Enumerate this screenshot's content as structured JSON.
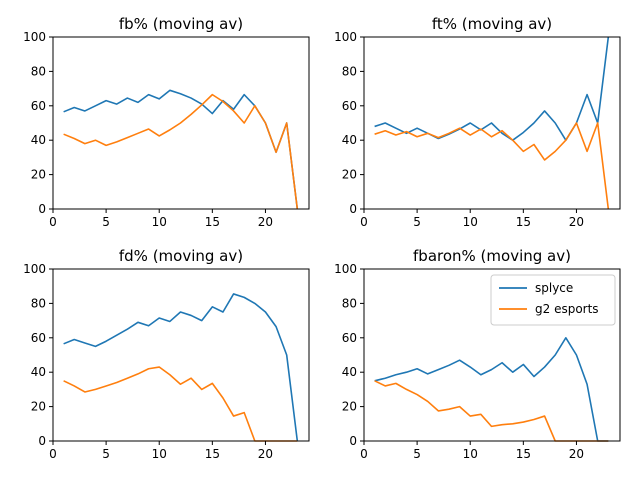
{
  "colors": {
    "splyce": "#1f77b4",
    "g2": "#ff7f0e"
  },
  "chart_data": [
    {
      "type": "line",
      "title": "fb% (moving av)",
      "xlabel": "",
      "ylabel": "",
      "xlim": [
        0,
        24.1
      ],
      "ylim": [
        0,
        100
      ],
      "xticks": [
        0,
        5,
        10,
        15,
        20
      ],
      "yticks": [
        0,
        20,
        40,
        60,
        80,
        100
      ],
      "x": [
        1,
        2,
        3,
        4,
        5,
        6,
        7,
        8,
        9,
        10,
        11,
        12,
        13,
        14,
        15,
        16,
        17,
        18,
        19,
        20,
        21,
        22,
        23
      ],
      "series": [
        {
          "name": "splyce",
          "values": [
            56.5,
            59,
            57,
            60,
            63,
            61,
            64.5,
            62,
            66.5,
            64,
            69,
            67,
            64.5,
            61,
            55.5,
            63,
            58,
            66.5,
            60,
            50,
            33,
            50,
            0
          ]
        },
        {
          "name": "g2 esports",
          "values": [
            43.5,
            41,
            38,
            40,
            37,
            39,
            41.5,
            44,
            46.5,
            42.5,
            46,
            50,
            55,
            60.5,
            66.5,
            62.5,
            57,
            50,
            60,
            50,
            33,
            50,
            0
          ]
        }
      ]
    },
    {
      "type": "line",
      "title": "ft% (moving av)",
      "xlabel": "",
      "ylabel": "",
      "xlim": [
        0,
        24.1
      ],
      "ylim": [
        0,
        100
      ],
      "xticks": [
        0,
        5,
        10,
        15,
        20
      ],
      "yticks": [
        0,
        20,
        40,
        60,
        80,
        100
      ],
      "x": [
        1,
        2,
        3,
        4,
        5,
        6,
        7,
        8,
        9,
        10,
        11,
        12,
        13,
        14,
        15,
        16,
        17,
        18,
        19,
        20,
        21,
        22,
        23
      ],
      "series": [
        {
          "name": "splyce",
          "values": [
            48,
            50,
            47,
            44,
            47,
            44,
            41,
            43.5,
            46.5,
            50,
            46,
            50,
            44,
            40,
            44.5,
            50,
            57,
            50,
            40,
            50,
            66.5,
            50,
            100
          ]
        },
        {
          "name": "g2 esports",
          "values": [
            43.5,
            45.5,
            43,
            45,
            42,
            44,
            41.5,
            44,
            47,
            43,
            46.5,
            42,
            45.5,
            40,
            33.5,
            37.5,
            28.5,
            33.5,
            40,
            50,
            33.5,
            50,
            0
          ]
        }
      ]
    },
    {
      "type": "line",
      "title": "fd% (moving av)",
      "xlabel": "",
      "ylabel": "",
      "xlim": [
        0,
        24.1
      ],
      "ylim": [
        0,
        100
      ],
      "xticks": [
        0,
        5,
        10,
        15,
        20
      ],
      "yticks": [
        0,
        20,
        40,
        60,
        80,
        100
      ],
      "x": [
        1,
        2,
        3,
        4,
        5,
        6,
        7,
        8,
        9,
        10,
        11,
        12,
        13,
        14,
        15,
        16,
        17,
        18,
        19,
        20,
        21,
        22,
        23
      ],
      "series": [
        {
          "name": "splyce",
          "values": [
            56.5,
            59,
            57,
            55,
            58,
            61.5,
            65,
            69,
            67,
            71.5,
            69.5,
            75,
            73,
            70,
            78,
            75,
            85.5,
            83.5,
            80,
            75,
            66.5,
            50,
            0
          ]
        },
        {
          "name": "g2 esports",
          "values": [
            35,
            32,
            28.5,
            30,
            32,
            34,
            36.5,
            39,
            42,
            43,
            38.5,
            33,
            36.5,
            30,
            33.5,
            25,
            14.5,
            16.5,
            0,
            0,
            0,
            0,
            0
          ]
        }
      ]
    },
    {
      "type": "line",
      "title": "fbaron% (moving av)",
      "xlabel": "",
      "ylabel": "",
      "xlim": [
        0,
        24.1
      ],
      "ylim": [
        0,
        100
      ],
      "xticks": [
        0,
        5,
        10,
        15,
        20
      ],
      "yticks": [
        0,
        20,
        40,
        60,
        80,
        100
      ],
      "legend": "top-right",
      "x": [
        1,
        2,
        3,
        4,
        5,
        6,
        7,
        8,
        9,
        10,
        11,
        12,
        13,
        14,
        15,
        16,
        17,
        18,
        19,
        20,
        21,
        22,
        23
      ],
      "series": [
        {
          "name": "splyce",
          "values": [
            35,
            36.5,
            38.5,
            40,
            42,
            39,
            41.5,
            44,
            47,
            43,
            38.5,
            41.5,
            45.5,
            40,
            44.5,
            37.5,
            43,
            50,
            60,
            50,
            33,
            0,
            0
          ]
        },
        {
          "name": "g2 esports",
          "values": [
            35,
            32,
            33.5,
            30,
            27,
            23,
            17.5,
            18.5,
            20,
            14.5,
            15.5,
            8.5,
            9.5,
            10,
            11,
            12.5,
            14.5,
            0,
            0,
            0,
            0,
            0,
            0
          ]
        }
      ]
    }
  ]
}
